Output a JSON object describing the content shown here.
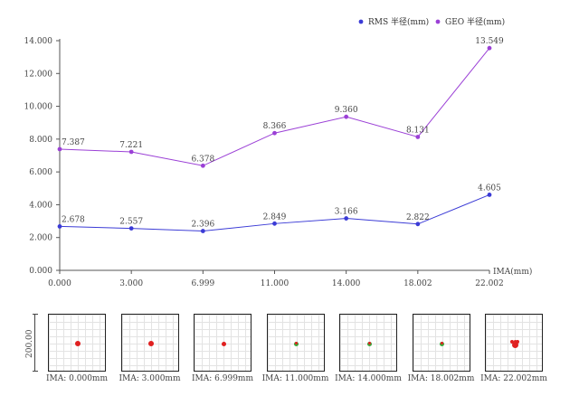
{
  "chart_data": {
    "type": "line",
    "x": [
      "0.000",
      "3.000",
      "6.999",
      "11.000",
      "14.000",
      "18.002",
      "22.002"
    ],
    "xlabel": "IMA(mm)",
    "ylim": [
      0,
      14
    ],
    "yticks": [
      "0.000",
      "2.000",
      "4.000",
      "6.000",
      "8.000",
      "10.000",
      "12.000",
      "14.000"
    ],
    "legend_position": "top-right",
    "series": [
      {
        "name": "RMS 半径(mm)",
        "color": "#3b3bd6",
        "values": [
          2.678,
          2.557,
          2.396,
          2.849,
          3.166,
          2.822,
          4.605
        ],
        "labels": [
          "2.678",
          "2.557",
          "2.396",
          "2.849",
          "3.166",
          "2.822",
          "4.605"
        ]
      },
      {
        "name": "GEO 半径(mm)",
        "color": "#9b40d6",
        "values": [
          7.387,
          7.221,
          6.378,
          8.366,
          9.36,
          8.131,
          13.549
        ],
        "labels": [
          "7.387",
          "7.221",
          "6.378",
          "8.366",
          "9.360",
          "8.131",
          "13.549"
        ]
      }
    ]
  },
  "spot_diagram": {
    "scale_label": "200.00",
    "spots": [
      {
        "label": "IMA: 0.000mm",
        "size": "large"
      },
      {
        "label": "IMA: 3.000mm",
        "size": "large"
      },
      {
        "label": "IMA: 6.999mm",
        "size": "medium"
      },
      {
        "label": "IMA: 11.000mm",
        "size": "small"
      },
      {
        "label": "IMA: 14.000mm",
        "size": "small"
      },
      {
        "label": "IMA: 18.002mm",
        "size": "small"
      },
      {
        "label": "IMA: 22.002mm",
        "size": "arrow"
      }
    ],
    "colors": {
      "red": "#e02020",
      "green": "#3aa83a"
    }
  }
}
